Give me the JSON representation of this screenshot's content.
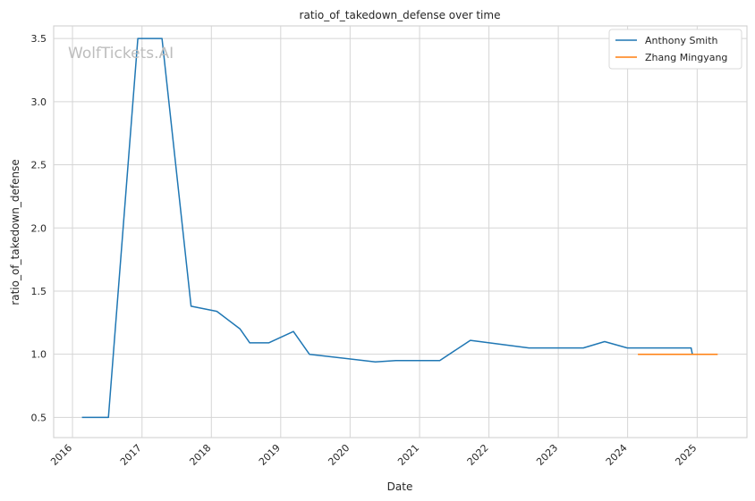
{
  "watermark": "WolfTickets.AI",
  "chart_data": {
    "type": "line",
    "title": "ratio_of_takedown_defense over time",
    "xlabel": "Date",
    "ylabel": "ratio_of_takedown_defense",
    "xlim": [
      "2015-09-24",
      "2025-09-20"
    ],
    "ylim": [
      0.34,
      3.6
    ],
    "x_ticks": [
      "2016",
      "2017",
      "2018",
      "2019",
      "2020",
      "2021",
      "2022",
      "2023",
      "2024",
      "2025"
    ],
    "y_ticks": [
      "0.5",
      "1.0",
      "1.5",
      "2.0",
      "2.5",
      "3.0",
      "3.5"
    ],
    "grid": true,
    "legend_position": "top-right",
    "series": [
      {
        "name": "Anthony Smith",
        "color": "#1f77b4",
        "x": [
          "2016-02-20",
          "2016-07-08",
          "2016-12-10",
          "2017-04-16",
          "2017-09-16",
          "2018-01-30",
          "2018-06-01",
          "2018-07-22",
          "2018-10-30",
          "2019-03-09",
          "2019-06-01",
          "2020-05-13",
          "2020-08-29",
          "2021-04-17",
          "2021-09-25",
          "2022-07-30",
          "2023-05-13",
          "2023-09-02",
          "2023-12-30",
          "2024-06-29",
          "2024-11-30",
          "2024-12-07",
          "2025-04-12"
        ],
        "y": [
          0.5,
          0.5,
          3.5,
          3.5,
          1.38,
          1.34,
          1.2,
          1.09,
          1.09,
          1.18,
          1.0,
          0.94,
          0.95,
          0.95,
          1.11,
          1.05,
          1.05,
          1.1,
          1.05,
          1.05,
          1.05,
          1.0,
          1.0
        ]
      },
      {
        "name": "Zhang Mingyang",
        "color": "#ff7f0e",
        "x": [
          "2024-02-24",
          "2025-04-19"
        ],
        "y": [
          1.0,
          1.0
        ]
      }
    ]
  }
}
